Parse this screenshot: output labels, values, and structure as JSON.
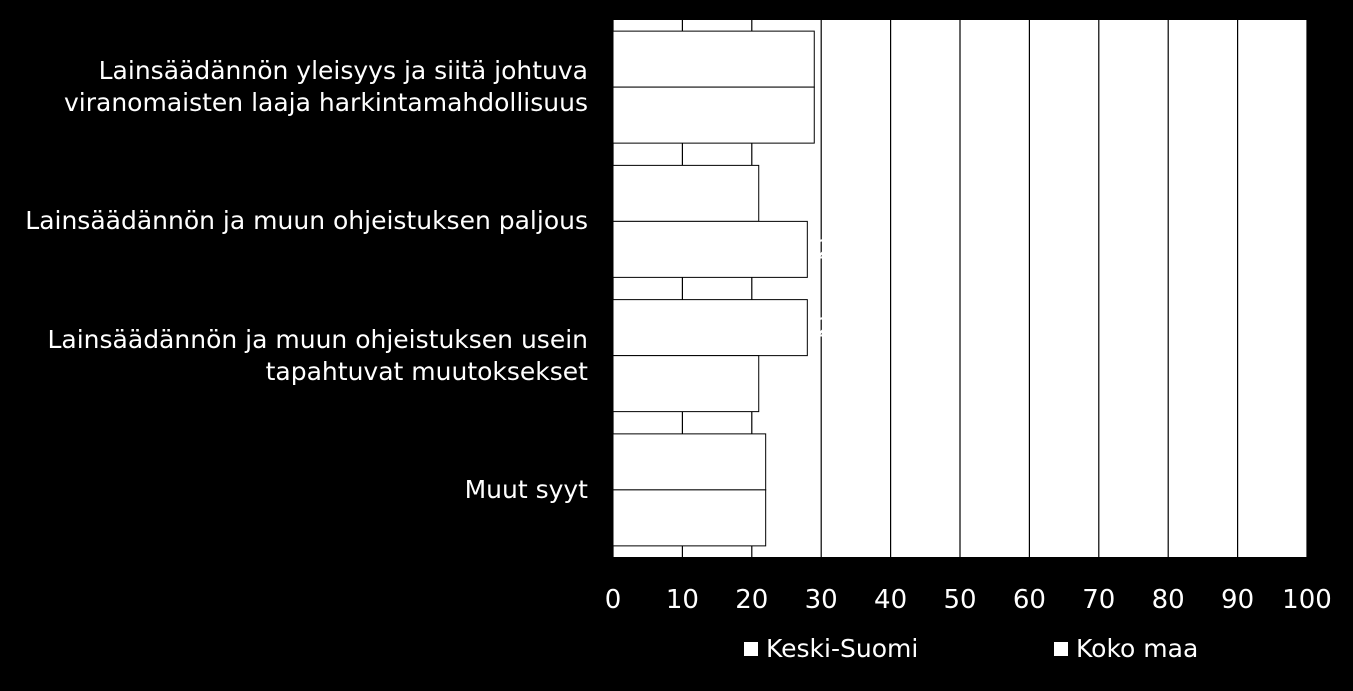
{
  "chart_data": {
    "type": "bar",
    "orientation": "horizontal",
    "categories": [
      "Lainsäädännön yleisyys ja siitä johtuva\nviranomaisten laaja harkintamahdollisuus",
      "Lainsäädännön ja muun ohjeistuksen paljous",
      "Lainsäädännön ja muun ohjeistuksen usein\ntapahtuvat muutoksekset",
      "Muut syyt"
    ],
    "series": [
      {
        "name": "Keski-Suomi",
        "values": [
          29,
          21,
          28,
          22
        ]
      },
      {
        "name": "Koko maa",
        "values": [
          29,
          28,
          21,
          22
        ]
      }
    ],
    "xlim": [
      0,
      100
    ],
    "xticks": [
      0,
      10,
      20,
      30,
      40,
      50,
      60,
      70,
      80,
      90,
      100
    ],
    "grid": "vertical",
    "legend_position": "bottom",
    "colors": {
      "background": "#000000",
      "bars": "#ffffff",
      "grid": "#000000",
      "text": "#ffffff"
    }
  }
}
